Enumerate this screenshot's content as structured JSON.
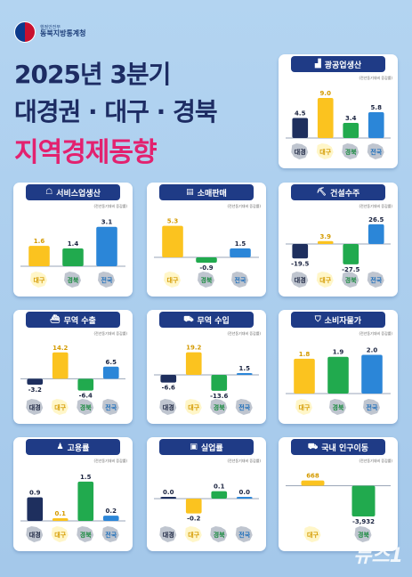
{
  "header": {
    "org_small": "행정안전부",
    "org_name": "동북지방통계청",
    "title_line1": "2025년 3분기",
    "title_line2": "대경권 · 대구 · 경북",
    "title_line3": "지역경제동향"
  },
  "note_text": "(전년동기대비 증감률)",
  "credit": "뉴스1",
  "colors": {
    "navy": "#1e2f5e",
    "yellow": "#fbc31f",
    "green": "#21aa4e",
    "blue": "#2b86d8",
    "header": "#1f3b86"
  },
  "chart_data": [
    {
      "id": "mining",
      "title": "광공업생산",
      "icon": "factory-icon",
      "type": "bar",
      "categories": [
        "대경",
        "대구",
        "경북",
        "전국"
      ],
      "values": [
        4.5,
        9.0,
        3.4,
        5.8
      ],
      "labels": [
        "4.5",
        "9.0",
        "3.4",
        "5.8"
      ],
      "ylim": [
        0,
        10
      ]
    },
    {
      "id": "service",
      "title": "서비스업생산",
      "icon": "service-icon",
      "type": "bar",
      "categories": [
        "대구",
        "경북",
        "전국"
      ],
      "values": [
        1.6,
        1.4,
        3.1
      ],
      "labels": [
        "1.6",
        "1.4",
        "3.1"
      ],
      "ylim": [
        0,
        3.5
      ]
    },
    {
      "id": "retail",
      "title": "소매판매",
      "icon": "store-icon",
      "type": "bar",
      "categories": [
        "대구",
        "경북",
        "전국"
      ],
      "values": [
        5.3,
        -0.9,
        1.5
      ],
      "labels": [
        "5.3",
        "-0.9",
        "1.5"
      ],
      "ylim": [
        -1.5,
        6
      ]
    },
    {
      "id": "construction",
      "title": "건설수주",
      "icon": "crane-icon",
      "type": "bar",
      "categories": [
        "대경",
        "대구",
        "경북",
        "전국"
      ],
      "values": [
        -19.5,
        3.9,
        -27.5,
        26.5
      ],
      "labels": [
        "-19.5",
        "3.9",
        "-27.5",
        "26.5"
      ],
      "ylim": [
        -30,
        30
      ]
    },
    {
      "id": "export",
      "title": "무역 수출",
      "icon": "ship-icon",
      "type": "bar",
      "categories": [
        "대경",
        "대구",
        "경북",
        "전국"
      ],
      "values": [
        -3.2,
        14.2,
        -6.4,
        6.5
      ],
      "labels": [
        "-3.2",
        "14.2",
        "-6.4",
        "6.5"
      ],
      "ylim": [
        -8,
        16
      ]
    },
    {
      "id": "import",
      "title": "무역 수입",
      "icon": "truck-icon",
      "type": "bar",
      "categories": [
        "대경",
        "대구",
        "경북",
        "전국"
      ],
      "values": [
        -6.6,
        19.2,
        -13.6,
        1.5
      ],
      "labels": [
        "-6.6",
        "19.2",
        "-13.6",
        "1.5"
      ],
      "ylim": [
        -16,
        22
      ]
    },
    {
      "id": "cpi",
      "title": "소비자물가",
      "icon": "cart-icon",
      "type": "bar",
      "categories": [
        "대구",
        "경북",
        "전국"
      ],
      "values": [
        1.8,
        1.9,
        2.0
      ],
      "labels": [
        "1.8",
        "1.9",
        "2.0"
      ],
      "ylim": [
        0,
        2.3
      ]
    },
    {
      "id": "employment",
      "title": "고용률",
      "icon": "people-icon",
      "type": "bar",
      "categories": [
        "대경",
        "대구",
        "경북",
        "전국"
      ],
      "values": [
        0.9,
        0.1,
        1.5,
        0.2
      ],
      "labels": [
        "0.9",
        "0.1",
        "1.5",
        "0.2"
      ],
      "ylim": [
        0,
        1.7
      ]
    },
    {
      "id": "unemployment",
      "title": "실업률",
      "icon": "briefcase-icon",
      "type": "bar",
      "categories": [
        "대경",
        "대구",
        "경북",
        "전국"
      ],
      "values": [
        0.0,
        -0.2,
        0.1,
        0.0
      ],
      "labels": [
        "0.0",
        "-0.2",
        "0.1",
        "0.0"
      ],
      "ylim": [
        -0.3,
        0.3
      ]
    },
    {
      "id": "migration",
      "title": "국내 인구이동",
      "icon": "moving-truck-icon",
      "type": "bar",
      "categories": [
        "대구",
        "경북"
      ],
      "values": [
        668,
        -3932
      ],
      "labels": [
        "668",
        "-3,932"
      ],
      "ylim": [
        -4500,
        1200
      ]
    }
  ]
}
